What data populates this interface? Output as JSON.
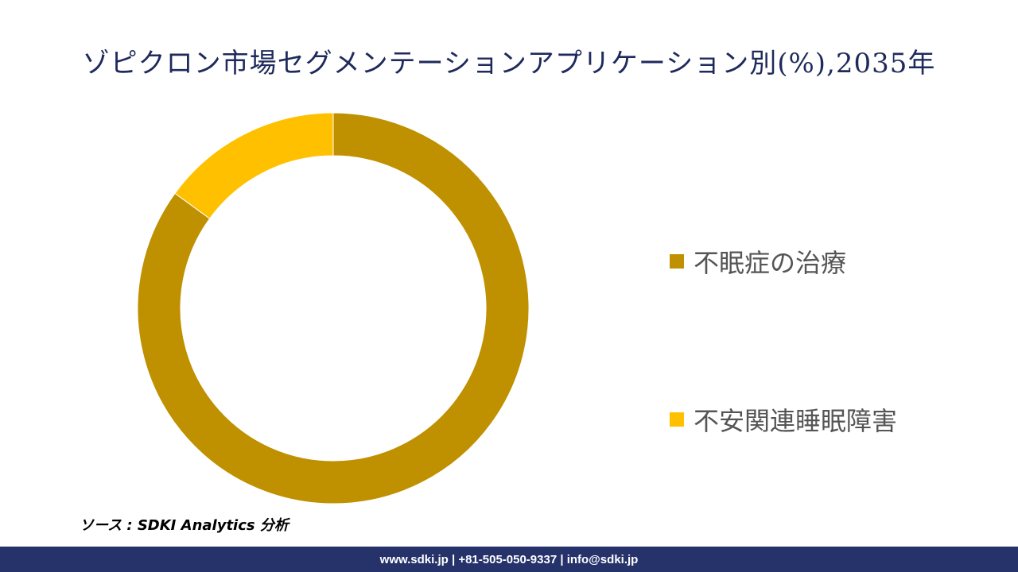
{
  "title": "ゾピクロン市場セグメンテーションアプリケーション別(%),2035年",
  "source": "ソース : SDKI Analytics 分析",
  "footer": "www.sdki.jp | +81-505-050-9337 | info@sdki.jp",
  "chart_data": {
    "type": "pie",
    "variant": "donut",
    "title": "ゾピクロン市場セグメンテーションアプリケーション別(%),2035年",
    "categories": [
      "不眠症の治療",
      "不安関連睡眠障害"
    ],
    "values": [
      85,
      15
    ],
    "colors": [
      "#bf9000",
      "#ffc000"
    ],
    "legend_position": "right",
    "start": "top, clockwise"
  }
}
